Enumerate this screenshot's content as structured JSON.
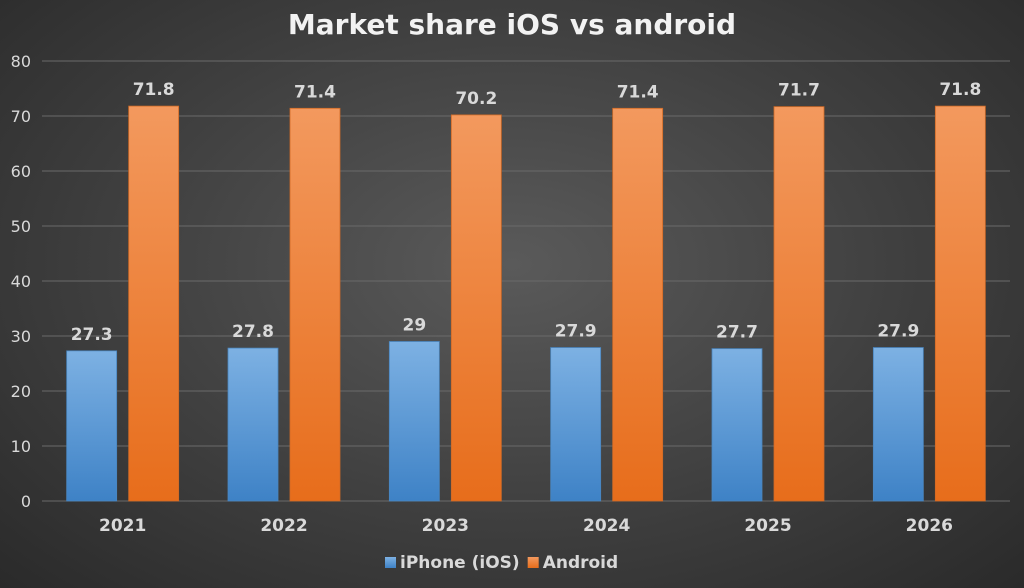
{
  "chart_data": {
    "type": "bar",
    "title": "Market share iOS vs android",
    "categories": [
      "2021",
      "2022",
      "2023",
      "2024",
      "2025",
      "2026"
    ],
    "series": [
      {
        "name": "iPhone (iOS)",
        "values": [
          27.3,
          27.8,
          29,
          27.9,
          27.7,
          27.9
        ],
        "color": "#5b9bd5"
      },
      {
        "name": "Android",
        "values": [
          71.8,
          71.4,
          70.2,
          71.4,
          71.7,
          71.8
        ],
        "color": "#ed7d31"
      }
    ],
    "ylim": [
      0,
      80
    ],
    "yticks": [
      "0",
      "10",
      "20",
      "30",
      "40",
      "50",
      "60",
      "70",
      "80"
    ],
    "grid": true,
    "legend_position": "bottom",
    "data_labels": true
  }
}
